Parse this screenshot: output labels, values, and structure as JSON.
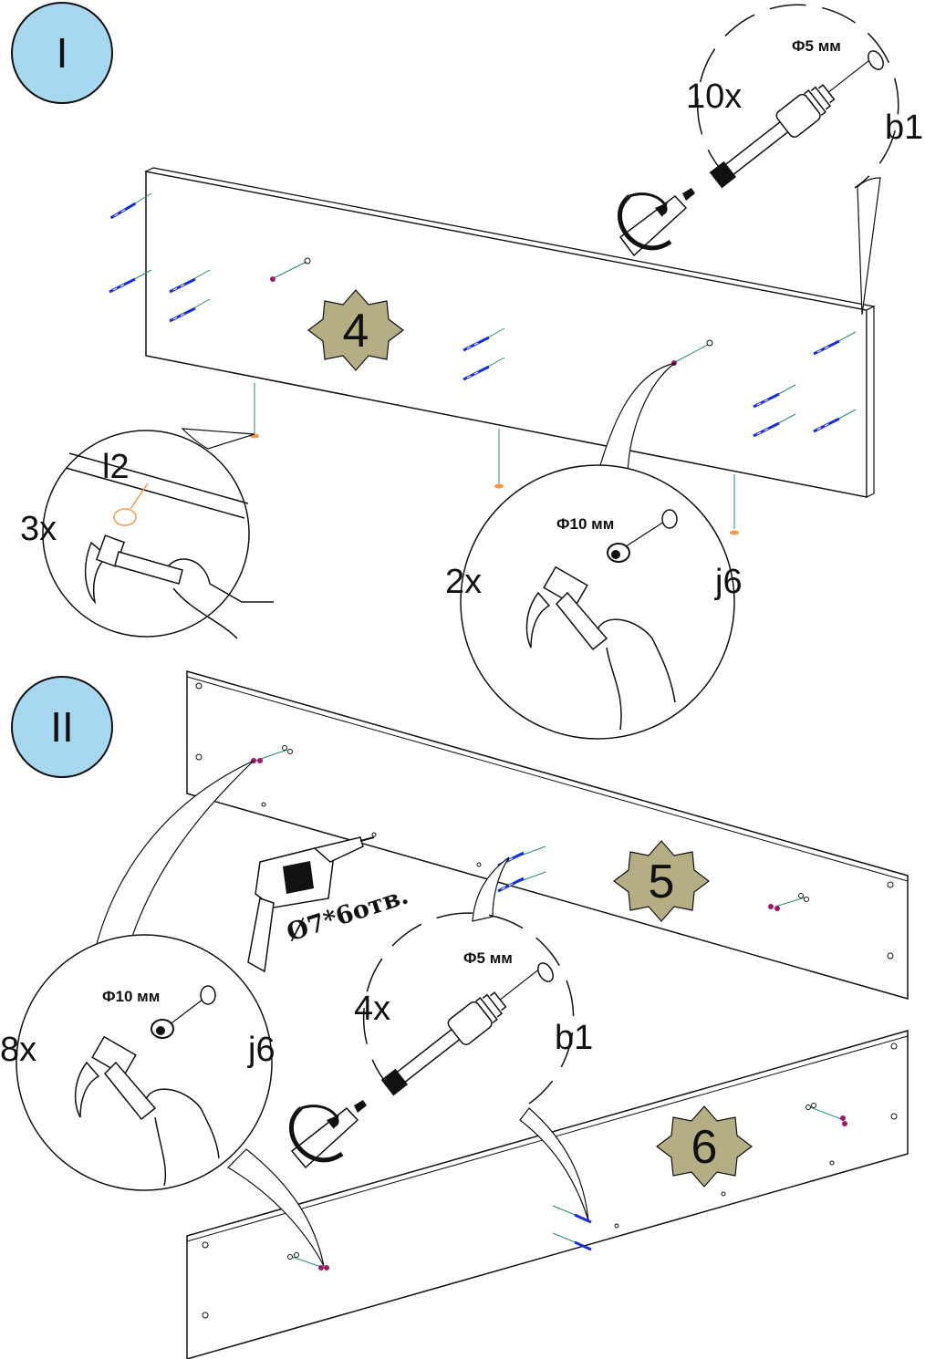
{
  "steps": [
    {
      "roman": "I"
    },
    {
      "roman": "II"
    }
  ],
  "parts": {
    "p4": "4",
    "p5": "5",
    "p6": "6"
  },
  "callouts": {
    "c1": {
      "count": "10x",
      "dim": "Ф5 мм",
      "code": "b1"
    },
    "c2": {
      "count": "3x",
      "code": "l2"
    },
    "c3": {
      "count": "2x",
      "dim": "Ф10 мм",
      "code": "j6"
    },
    "c4": {
      "count": "8x",
      "dim": "Ф10 мм",
      "code": "j6"
    },
    "c5": {
      "count": "4x",
      "dim": "Ф5 мм",
      "code": "b1"
    }
  },
  "drill_note": "Ø7*6отв.",
  "colors": {
    "step_badge": "#a8d8f0",
    "part_badge": "#b5ad84",
    "screw": "#1a2fd8",
    "dowel": "#9b1b6a",
    "nail": "#f39a4a",
    "guide": "#2a8a7a"
  }
}
